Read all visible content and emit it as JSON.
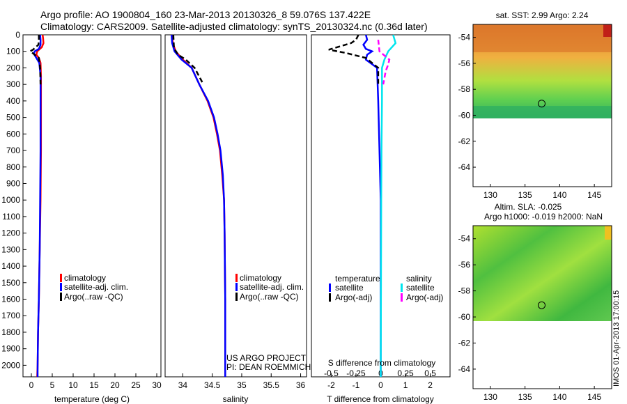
{
  "header": {
    "line1": "Argo profile: AO 1900804_160 23-Mar-2013 20130326_8 59.076S 137.422E",
    "line2": "Climatology: CARS2009. Satellite-adjusted climatology: synTS_20130324.nc (0.36d later)"
  },
  "colors": {
    "climatology": "#ff0000",
    "satellite": "#0000ff",
    "argo": "#000000",
    "salinity_satellite": "#00e5ee",
    "salinity_argo": "#ff00ff"
  },
  "chart_data": [
    {
      "type": "line",
      "id": "temperature-profile",
      "xlabel": "temperature (deg C)",
      "ylabel": "",
      "xlim": [
        -2,
        31
      ],
      "ylim": [
        2070,
        0
      ],
      "xticks": [
        0,
        5,
        10,
        15,
        20,
        25,
        30
      ],
      "yticks": [
        0,
        100,
        200,
        300,
        400,
        500,
        600,
        700,
        800,
        900,
        1000,
        1100,
        1200,
        1300,
        1400,
        1500,
        1600,
        1700,
        1800,
        1900,
        2000
      ],
      "legend": [
        "climatology",
        "satellite-adj. clim.",
        "Argo(..raw -QC)"
      ],
      "series": [
        {
          "name": "climatology",
          "style": "solid",
          "points": [
            [
              2.7,
              0
            ],
            [
              2.8,
              20
            ],
            [
              2.9,
              50
            ],
            [
              2.5,
              75
            ],
            [
              1.4,
              100
            ],
            [
              1.2,
              120
            ],
            [
              1.8,
              140
            ],
            [
              2.2,
              170
            ],
            [
              2.3,
              250
            ],
            [
              2.3,
              400
            ],
            [
              2.3,
              700
            ],
            [
              2.2,
              1000
            ],
            [
              2.0,
              1300
            ],
            [
              1.8,
              1600
            ],
            [
              1.6,
              1800
            ],
            [
              1.5,
              2000
            ],
            [
              1.4,
              2070
            ]
          ]
        },
        {
          "name": "satellite-adj. clim.",
          "style": "solid",
          "points": [
            [
              2.1,
              0
            ],
            [
              2.2,
              30
            ],
            [
              2.2,
              60
            ],
            [
              1.8,
              85
            ],
            [
              0.8,
              100
            ],
            [
              0.6,
              115
            ],
            [
              1.2,
              140
            ],
            [
              1.9,
              170
            ],
            [
              2.2,
              250
            ],
            [
              2.2,
              400
            ],
            [
              2.2,
              700
            ],
            [
              2.1,
              1000
            ],
            [
              2.0,
              1300
            ],
            [
              1.8,
              1600
            ],
            [
              1.6,
              1800
            ],
            [
              1.5,
              2000
            ],
            [
              1.5,
              2070
            ]
          ]
        },
        {
          "name": "Argo(..raw -QC)",
          "style": "dashed",
          "points": [
            [
              1.8,
              0
            ],
            [
              1.8,
              30
            ],
            [
              1.7,
              60
            ],
            [
              0.4,
              90
            ],
            [
              -0.3,
              100
            ],
            [
              0.3,
              110
            ],
            [
              1.8,
              140
            ],
            [
              2.1,
              200
            ],
            [
              2.2,
              300
            ]
          ]
        }
      ]
    },
    {
      "type": "line",
      "id": "salinity-profile",
      "xlabel": "salinity",
      "ylabel": "",
      "xlim": [
        33.7,
        36.1
      ],
      "ylim": [
        2070,
        0
      ],
      "xticks": [
        34,
        34.5,
        35,
        35.5,
        36
      ],
      "legend": [
        "climatology",
        "satellite-adj. clim.",
        "Argo(..raw -QC)"
      ],
      "annotation": [
        "US ARGO PROJECT",
        "PI: DEAN ROEMMICH"
      ],
      "series": [
        {
          "name": "climatology",
          "style": "solid",
          "points": [
            [
              33.82,
              0
            ],
            [
              33.83,
              50
            ],
            [
              33.88,
              100
            ],
            [
              34.0,
              150
            ],
            [
              34.15,
              200
            ],
            [
              34.28,
              300
            ],
            [
              34.42,
              400
            ],
            [
              34.52,
              500
            ],
            [
              34.58,
              600
            ],
            [
              34.63,
              700
            ],
            [
              34.67,
              850
            ],
            [
              34.7,
              1000
            ],
            [
              34.71,
              1200
            ],
            [
              34.72,
              1600
            ],
            [
              34.72,
              2070
            ]
          ]
        },
        {
          "name": "satellite-adj. clim.",
          "style": "solid",
          "points": [
            [
              33.81,
              0
            ],
            [
              33.82,
              50
            ],
            [
              33.86,
              100
            ],
            [
              33.98,
              150
            ],
            [
              34.15,
              200
            ],
            [
              34.28,
              300
            ],
            [
              34.43,
              400
            ],
            [
              34.53,
              500
            ],
            [
              34.59,
              600
            ],
            [
              34.64,
              700
            ],
            [
              34.68,
              850
            ],
            [
              34.7,
              1000
            ],
            [
              34.71,
              1200
            ],
            [
              34.72,
              1600
            ],
            [
              34.72,
              2070
            ]
          ]
        },
        {
          "name": "Argo(..raw -QC)",
          "style": "dashed",
          "points": [
            [
              33.84,
              0
            ],
            [
              33.85,
              80
            ],
            [
              33.92,
              120
            ],
            [
              34.05,
              150
            ],
            [
              34.2,
              200
            ],
            [
              34.35,
              300
            ]
          ]
        }
      ]
    },
    {
      "type": "line",
      "id": "difference-profile",
      "xlabel": "T difference from climatology",
      "xlabel_top": "S difference from climatology",
      "xlim": [
        -2.8,
        2.8
      ],
      "ylim": [
        2070,
        0
      ],
      "xticks": [
        -2,
        -1,
        0,
        1,
        2
      ],
      "xticks_top_labels": [
        "-0.5",
        "-0.25",
        "0",
        "0.25",
        "0.5"
      ],
      "xticks_top_values": [
        -2,
        -1,
        0,
        1,
        2
      ],
      "legend_titles": [
        "temperature",
        "salinity"
      ],
      "legend": [
        "satellite",
        "Argo(-adj)",
        "satellite",
        "Argo(-adj)"
      ],
      "series": [
        {
          "name": "satellite",
          "quantity": "temperature",
          "style": "solid",
          "points": [
            [
              -0.6,
              0
            ],
            [
              -0.55,
              30
            ],
            [
              -0.7,
              60
            ],
            [
              -0.6,
              85
            ],
            [
              -0.35,
              100
            ],
            [
              -0.55,
              120
            ],
            [
              -0.6,
              150
            ],
            [
              -0.15,
              200
            ],
            [
              -0.1,
              400
            ],
            [
              -0.05,
              700
            ],
            [
              0,
              1000
            ],
            [
              0,
              2070
            ]
          ]
        },
        {
          "name": "Argo(-adj)",
          "quantity": "temperature",
          "style": "dashed",
          "points": [
            [
              -0.9,
              0
            ],
            [
              -1.0,
              30
            ],
            [
              -1.2,
              50
            ],
            [
              -2.1,
              90
            ],
            [
              -1.4,
              110
            ],
            [
              -0.6,
              140
            ],
            [
              -0.1,
              200
            ],
            [
              -0.1,
              300
            ]
          ]
        },
        {
          "name": "satellite",
          "quantity": "salinity",
          "style": "solid",
          "points": [
            [
              0.5,
              0
            ],
            [
              0.6,
              50
            ],
            [
              0.3,
              100
            ],
            [
              0.15,
              150
            ],
            [
              0.05,
              200
            ],
            [
              0.05,
              400
            ],
            [
              0.03,
              700
            ],
            [
              0.02,
              1000
            ],
            [
              0,
              2070
            ]
          ]
        },
        {
          "name": "Argo(-adj)",
          "quantity": "salinity",
          "style": "dashed",
          "points": [
            [
              -0.1,
              30
            ],
            [
              -0.05,
              100
            ],
            [
              0.35,
              150
            ],
            [
              0.3,
              180
            ],
            [
              0.2,
              220
            ],
            [
              0.1,
              300
            ]
          ]
        }
      ]
    },
    {
      "type": "heatmap",
      "id": "sst-map",
      "title": "sat. SST: 2.99 Argo: 2.24",
      "xlim": [
        127.5,
        147.5
      ],
      "ylim": [
        -65.5,
        -53
      ],
      "xticks": [
        130,
        135,
        140,
        145
      ],
      "yticks": [
        -54,
        -56,
        -58,
        -60,
        -62,
        -64
      ],
      "data_ylim": [
        -60,
        -53
      ],
      "marker": [
        137.4,
        -59.1
      ]
    },
    {
      "type": "heatmap",
      "id": "sla-map",
      "title": "Altim. SLA: -0.025",
      "subtitle": "Argo h1000: -0.019 h2000: NaN",
      "xlim": [
        127.5,
        147.5
      ],
      "ylim": [
        -65.5,
        -53
      ],
      "xticks": [
        130,
        135,
        140,
        145
      ],
      "yticks": [
        -54,
        -56,
        -58,
        -60,
        -62,
        -64
      ],
      "data_ylim": [
        -60,
        -53
      ],
      "marker": [
        137.4,
        -59.1
      ]
    }
  ],
  "footer": {
    "credit": "IMOS 01-Apr-2013 17:00:15"
  }
}
